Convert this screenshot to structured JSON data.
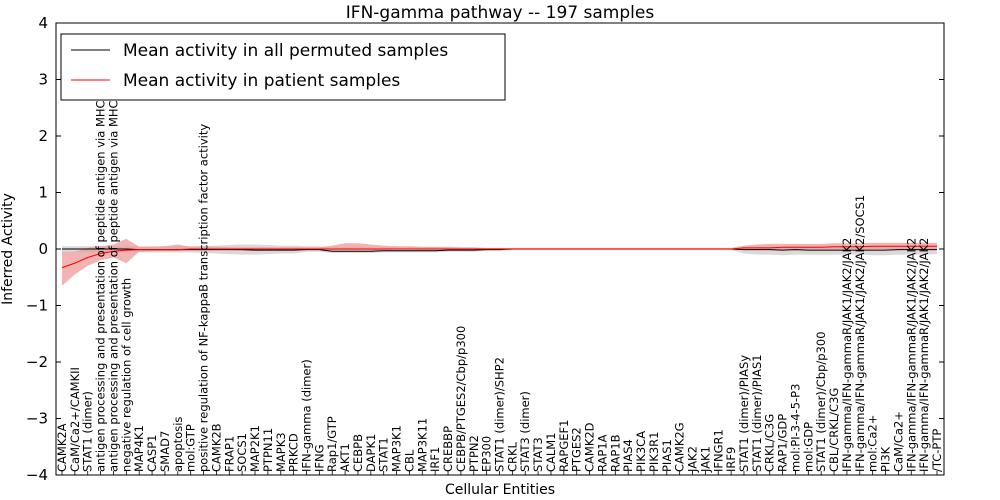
{
  "chart_data": {
    "type": "line",
    "title": "IFN-gamma pathway -- 197 samples",
    "xlabel": "Cellular Entities",
    "ylabel": "Inferred Activity",
    "ylim": [
      -4,
      4
    ],
    "yticks": [
      -4,
      -3,
      -2,
      -1,
      0,
      1,
      2,
      3,
      4
    ],
    "legend_position": "top-left",
    "categories": [
      "CAMK2A",
      "CaM/Ca2+/CAMKII",
      "STAT1 (dimer)",
      "antigen processing and presentation of peptide antigen via MHC class I",
      "antigen processing and presentation of peptide antigen via MHC class II",
      "negative regulation of cell growth",
      "MAP4K1",
      "CASP1",
      "SMAD7",
      "apoptosis",
      "mol:GTP",
      "positive regulation of NF-kappaB transcription factor activity",
      "CAMK2B",
      "FRAP1",
      "SOCS1",
      "MAP2K1",
      "PTPN11",
      "MAPK3",
      "PRKCD",
      "IFN-gamma (dimer)",
      "IFNG",
      "Rap1/GTP",
      "AKT1",
      "CEBPB",
      "DAPK1",
      "STAT1",
      "MAP3K1",
      "CBL",
      "MAP3K11",
      "IRF1",
      "CREBBP",
      "CEBPB/PTGES2/Cbp/p300",
      "PTPN2",
      "EP300",
      "STAT1 (dimer)/SHP2",
      "CRKL",
      "STAT3 (dimer)",
      "STAT3",
      "CALM1",
      "RAPGEF1",
      "PTGES2",
      "CAMK2D",
      "RAP1A",
      "RAP1B",
      "PIAS4",
      "PIK3CA",
      "PIK3R1",
      "PIAS1",
      "CAMK2G",
      "JAK2",
      "JAK1",
      "IFNGR1",
      "IRF9",
      "STAT1 (dimer)/PIASy",
      "STAT1 (dimer)/PIAS1",
      "CRKL/C3G",
      "RAP1/GDP",
      "mol:PI-3-4-5-P3",
      "mol:GDP",
      "STAT1 (dimer)/Cbp/p300",
      "CBL/CRKL/C3G",
      "IFN-gamma/IFN-gammaR/JAK1/JAK2/JAK2",
      "IFN-gamma/IFN-gammaR/JAK1/JAK2/JAK2/SOCS1",
      "mol:Ca2+",
      "PI3K",
      "CaM/Ca2+",
      "IFN-gamma/IFN-gammaR/JAK1/JAK2/JAK2",
      "IFN-gamma/IFN-gammaR/JAK1/JAK2/JAK2",
      "/TC-PTP"
    ],
    "series": [
      {
        "name": "Mean activity in all permuted samples",
        "color": "#000000",
        "band_color": "#c0c0c0",
        "values": [
          0,
          0,
          0,
          0,
          0,
          0,
          -0.01,
          -0.01,
          -0.01,
          -0.01,
          -0.01,
          -0.01,
          -0.01,
          -0.01,
          -0.01,
          -0.02,
          -0.02,
          -0.02,
          -0.02,
          -0.01,
          -0.01,
          -0.04,
          -0.04,
          -0.04,
          -0.04,
          -0.03,
          -0.03,
          -0.03,
          -0.03,
          -0.03,
          -0.02,
          -0.02,
          -0.02,
          -0.01,
          -0.01,
          0,
          0,
          0,
          0,
          0,
          0,
          0,
          0,
          0,
          0,
          0,
          0,
          0,
          0,
          0,
          0,
          0,
          0,
          -0.01,
          -0.01,
          -0.01,
          -0.02,
          -0.01,
          -0.02,
          -0.02,
          -0.02,
          -0.02,
          -0.02,
          -0.02,
          -0.02,
          -0.01,
          -0.01,
          -0.01,
          -0.01
        ],
        "lower": [
          -0.06,
          -0.06,
          -0.06,
          -0.06,
          -0.06,
          -0.06,
          -0.06,
          -0.06,
          -0.06,
          -0.06,
          -0.06,
          -0.07,
          -0.08,
          -0.09,
          -0.1,
          -0.1,
          -0.09,
          -0.08,
          -0.08,
          -0.05,
          -0.05,
          -0.07,
          -0.07,
          -0.07,
          -0.07,
          -0.06,
          -0.06,
          -0.06,
          -0.06,
          -0.06,
          -0.05,
          -0.05,
          -0.05,
          -0.03,
          -0.03,
          -0.02,
          -0.02,
          -0.02,
          -0.02,
          -0.02,
          -0.02,
          -0.02,
          -0.02,
          -0.02,
          -0.02,
          -0.02,
          -0.02,
          -0.02,
          -0.02,
          -0.02,
          -0.02,
          -0.02,
          -0.02,
          -0.08,
          -0.1,
          -0.1,
          -0.11,
          -0.1,
          -0.1,
          -0.1,
          -0.1,
          -0.1,
          -0.1,
          -0.11,
          -0.11,
          -0.1,
          -0.1,
          -0.1,
          -0.09
        ],
        "upper": [
          0.05,
          0.05,
          0.05,
          0.05,
          0.05,
          0.05,
          0.05,
          0.05,
          0.05,
          0.05,
          0.05,
          0.05,
          0.06,
          0.07,
          0.08,
          0.08,
          0.07,
          0.06,
          0.06,
          0.05,
          0.05,
          0.03,
          0.03,
          0.03,
          0.03,
          0.03,
          0.03,
          0.03,
          0.03,
          0.03,
          0.02,
          0.02,
          0.02,
          0.01,
          0.01,
          0.01,
          0.01,
          0.01,
          0.01,
          0.01,
          0.01,
          0.01,
          0.01,
          0.01,
          0.01,
          0.01,
          0.01,
          0.01,
          0.01,
          0.01,
          0.01,
          0.01,
          0.01,
          0.03,
          0.04,
          0.04,
          0.04,
          0.04,
          0.04,
          0.04,
          0.04,
          0.04,
          0.04,
          0.05,
          0.05,
          0.05,
          0.05,
          0.05,
          0.05
        ]
      },
      {
        "name": "Mean activity in patient samples",
        "color": "#ff0000",
        "band_color": "#ee9a9a",
        "values": [
          -0.33,
          -0.25,
          -0.15,
          -0.08,
          -0.04,
          -0.02,
          -0.01,
          -0.01,
          -0.01,
          -0.01,
          0,
          0,
          0,
          0,
          0,
          0,
          0,
          0,
          0,
          0,
          0,
          0,
          0,
          0,
          0,
          0,
          0,
          0,
          0,
          0,
          0,
          0,
          0,
          0,
          0,
          0,
          0,
          0,
          0,
          0,
          0,
          0,
          0,
          0,
          0,
          0,
          0,
          0,
          0,
          0,
          0,
          0,
          0,
          0.02,
          0.02,
          0.02,
          0.03,
          0.03,
          0.03,
          0.03,
          0.04,
          0.04,
          0.04,
          0.05,
          0.05,
          0.05,
          0.05,
          0.05,
          0.05
        ],
        "lower": [
          -0.65,
          -0.45,
          -0.3,
          -0.2,
          -0.15,
          -0.25,
          -0.05,
          -0.04,
          -0.04,
          -0.04,
          -0.02,
          -0.03,
          -0.02,
          -0.02,
          -0.03,
          -0.03,
          -0.02,
          -0.02,
          -0.02,
          -0.01,
          -0.01,
          -0.02,
          -0.02,
          -0.02,
          -0.02,
          -0.02,
          -0.01,
          -0.01,
          -0.01,
          -0.01,
          -0.01,
          -0.01,
          -0.01,
          -0.01,
          -0.01,
          -0.01,
          -0.01,
          -0.01,
          -0.01,
          -0.01,
          -0.01,
          -0.01,
          -0.01,
          -0.01,
          -0.01,
          -0.01,
          -0.01,
          -0.01,
          -0.01,
          -0.01,
          -0.01,
          -0.01,
          -0.01,
          -0.01,
          -0.01,
          -0.01,
          -0.01,
          -0.01,
          0,
          0,
          0,
          0,
          0,
          0,
          0,
          0,
          0,
          0,
          0
        ],
        "upper": [
          -0.05,
          -0.05,
          0.02,
          0.05,
          0.08,
          0.18,
          0.04,
          0.04,
          0.05,
          0.08,
          0.04,
          0.05,
          0.04,
          0.03,
          0.03,
          0.03,
          0.03,
          0.03,
          0.03,
          0.03,
          0.03,
          0.06,
          0.1,
          0.1,
          0.08,
          0.06,
          0.05,
          0.05,
          0.04,
          0.04,
          0.04,
          0.03,
          0.03,
          0.02,
          0.02,
          0.02,
          0.02,
          0.02,
          0.02,
          0.02,
          0.02,
          0.02,
          0.02,
          0.02,
          0.02,
          0.02,
          0.02,
          0.02,
          0.02,
          0.02,
          0.02,
          0.02,
          0.02,
          0.06,
          0.08,
          0.09,
          0.09,
          0.09,
          0.09,
          0.09,
          0.1,
          0.1,
          0.1,
          0.11,
          0.11,
          0.11,
          0.11,
          0.11,
          0.11
        ]
      }
    ]
  }
}
